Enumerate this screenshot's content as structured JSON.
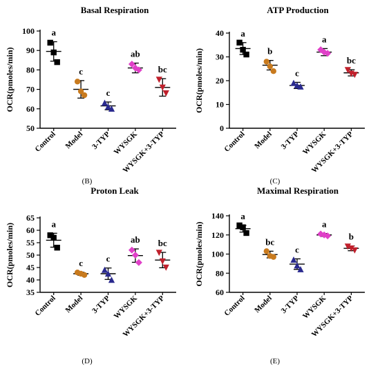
{
  "figure": {
    "panel_letters": [
      "(B)",
      "(C)",
      "(D)",
      "(E)"
    ],
    "colors": {
      "Control": "#000000",
      "Model": "#c87a1e",
      "3-TYP": "#2a2a8e",
      "WYSGK": "#e040c8",
      "WYSGK+3-TYP": "#c0202c"
    }
  },
  "chart_data": [
    {
      "type": "scatter",
      "title": "Basal Respiration",
      "ylabel": "OCR(pmoles/min)",
      "ylim": [
        50,
        100
      ],
      "yticks": [
        50,
        60,
        70,
        80,
        90,
        100
      ],
      "categories": [
        "Control",
        "Model",
        "3-TYP",
        "WYSGK",
        "WYSGK+3-TYP"
      ],
      "points": [
        [
          94,
          89,
          84
        ],
        [
          74,
          69,
          67
        ],
        [
          63,
          61,
          60
        ],
        [
          83,
          81,
          80
        ],
        [
          75,
          71,
          68
        ]
      ],
      "means": [
        89.5,
        70,
        61.5,
        81,
        71
      ],
      "sd": [
        5,
        4.5,
        2,
        2.5,
        4.5
      ],
      "letters": [
        "a",
        "c",
        "c",
        "ab",
        "bc"
      ]
    },
    {
      "type": "scatter",
      "title": "ATP Production",
      "ylabel": "OCR(pmoles/min)",
      "ylim": [
        0,
        40
      ],
      "yticks": [
        0,
        10,
        20,
        30,
        40
      ],
      "categories": [
        "Control",
        "Model",
        "3-TYP",
        "WYSGK",
        "WYSGK+3-TYP"
      ],
      "points": [
        [
          36,
          33,
          31
        ],
        [
          28,
          26,
          24
        ],
        [
          19,
          18,
          17.5
        ],
        [
          33,
          32,
          31.5
        ],
        [
          24.5,
          23,
          22.5
        ]
      ],
      "means": [
        33.5,
        26.5,
        18,
        32,
        23.3
      ],
      "sd": [
        2.5,
        2,
        1.3,
        1.5,
        1.3
      ],
      "letters": [
        "a",
        "b",
        "c",
        "a",
        "bc"
      ]
    },
    {
      "type": "scatter",
      "title": "Proton Leak",
      "ylabel": "OCR(pmoles/min)",
      "ylim": [
        35,
        65
      ],
      "yticks": [
        35,
        40,
        45,
        50,
        55,
        60,
        65
      ],
      "categories": [
        "Control",
        "Model",
        "3-TYP",
        "WYSGK",
        "WYSGK+3-TYP"
      ],
      "points": [
        [
          58,
          57,
          53
        ],
        [
          43,
          42.5,
          42
        ],
        [
          44,
          42.5,
          40
        ],
        [
          52,
          50,
          47
        ],
        [
          51,
          47.5,
          45
        ]
      ],
      "means": [
        56,
        42.5,
        42.5,
        49.8,
        48
      ],
      "sd": [
        2.8,
        0.6,
        2.3,
        2.7,
        3.1
      ],
      "letters": [
        "a",
        "c",
        "c",
        "ab",
        "bc"
      ]
    },
    {
      "type": "scatter",
      "title": "Maximal Respiration",
      "ylabel": "OCR(pmoles/min)",
      "ylim": [
        60,
        140
      ],
      "yticks": [
        60,
        80,
        100,
        120,
        140
      ],
      "categories": [
        "Control",
        "Model",
        "3-TYP",
        "WYSGK",
        "WYSGK+3-TYP"
      ],
      "points": [
        [
          130,
          128,
          122
        ],
        [
          103,
          98,
          97
        ],
        [
          94,
          88,
          84
        ],
        [
          121,
          120,
          119
        ],
        [
          108,
          106,
          104
        ]
      ],
      "means": [
        126.5,
        99.5,
        89.5,
        120,
        106
      ],
      "sd": [
        3.5,
        3.5,
        5.5,
        1.5,
        2.5
      ],
      "letters": [
        "a",
        "bc",
        "c",
        "a",
        "b"
      ]
    }
  ]
}
